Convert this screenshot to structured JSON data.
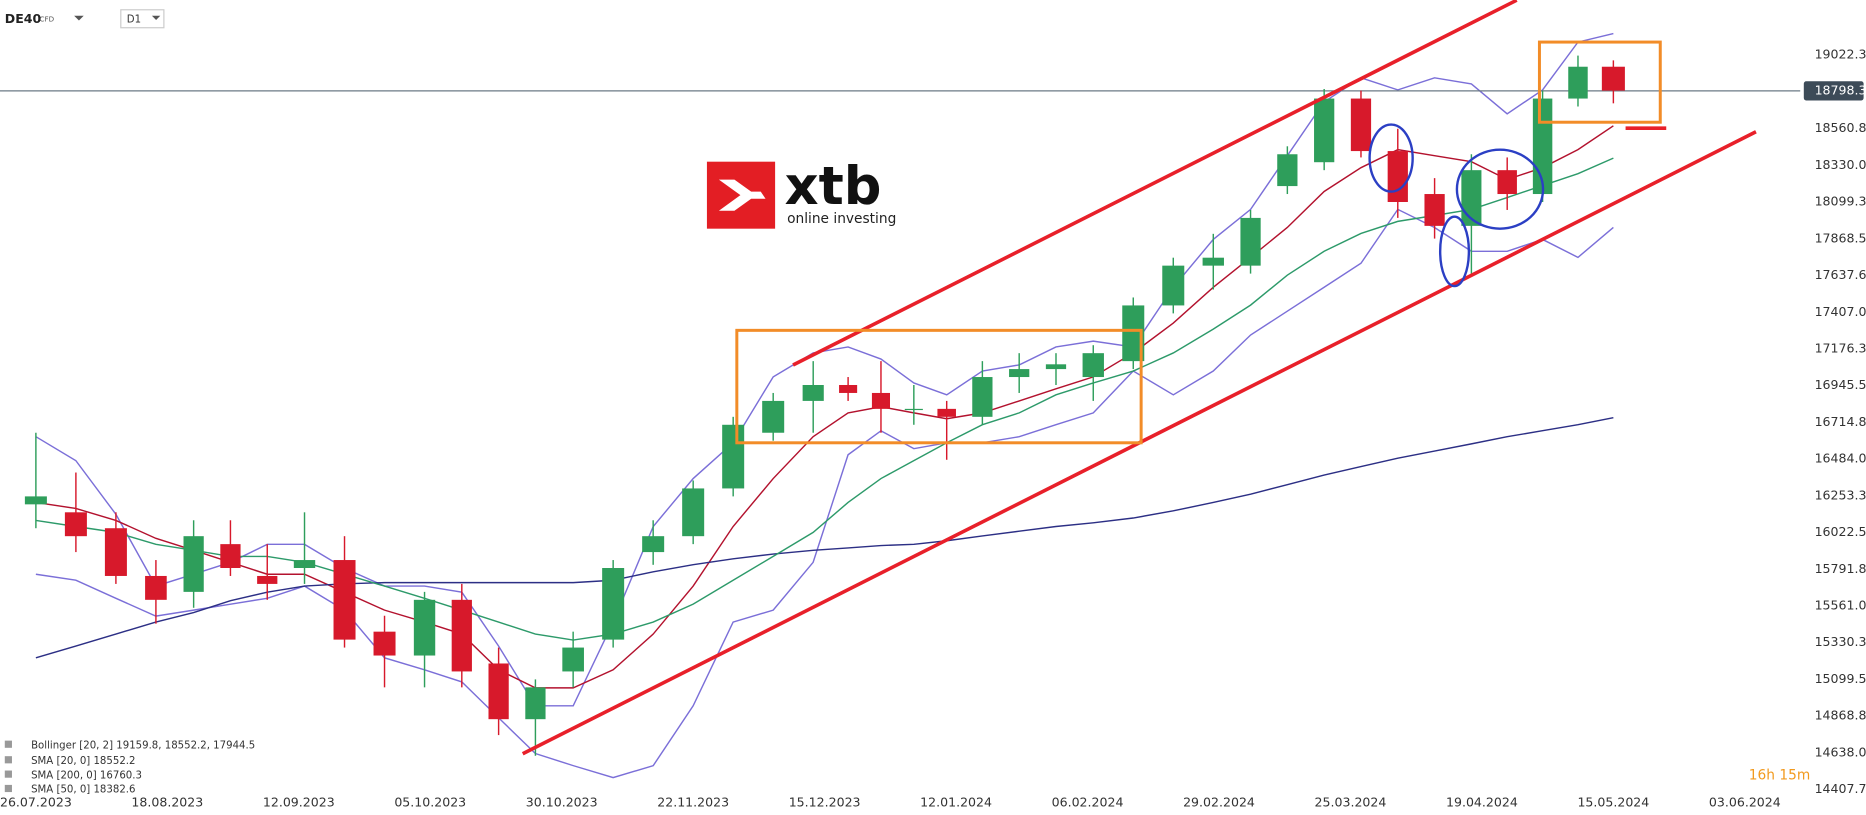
{
  "header": {
    "symbol": "DE40",
    "instrument_type": "CFD",
    "timeframe": "D1"
  },
  "logo": {
    "brand": "xtb",
    "tagline": "online investing"
  },
  "timer": "16h 15m",
  "chart_data": {
    "type": "candlestick",
    "up_color": "#2e9e5b",
    "down_color": "#d7192b",
    "x": [
      "24.07.2023",
      "31.07.2023",
      "07.08.2023",
      "14.08.2023",
      "21.08.2023",
      "28.08.2023",
      "04.09.2023",
      "11.09.2023",
      "18.09.2023",
      "25.09.2023",
      "02.10.2023",
      "09.10.2023",
      "16.10.2023",
      "23.10.2023",
      "30.10.2023",
      "06.11.2023",
      "13.11.2023",
      "20.11.2023",
      "27.11.2023",
      "04.12.2023",
      "11.12.2023",
      "18.12.2023",
      "25.12.2023",
      "01.01.2024",
      "08.01.2024",
      "15.01.2024",
      "22.01.2024",
      "29.01.2024",
      "05.02.2024",
      "12.02.2024",
      "19.02.2024",
      "26.02.2024",
      "04.03.2024",
      "11.03.2024",
      "18.03.2024",
      "25.03.2024",
      "01.04.2024",
      "08.04.2024",
      "15.04.2024",
      "22.04.2024",
      "29.04.2024",
      "06.05.2024",
      "13.05.2024"
    ],
    "open": [
      16200,
      16150,
      16050,
      15750,
      15650,
      15950,
      15750,
      15800,
      15850,
      15400,
      15250,
      15600,
      15200,
      14850,
      15150,
      15350,
      15900,
      16000,
      16300,
      16650,
      16850,
      16950,
      16900,
      16800,
      16800,
      16750,
      17000,
      17050,
      17000,
      17100,
      17450,
      17700,
      17700,
      18200,
      18350,
      18750,
      18420,
      18150,
      17950,
      18300,
      18150,
      18750,
      18950
    ],
    "high": [
      16650,
      16400,
      16150,
      15850,
      16100,
      16100,
      15950,
      16150,
      16000,
      15500,
      15650,
      15700,
      15300,
      15100,
      15400,
      15850,
      16100,
      16350,
      16750,
      16900,
      17100,
      17000,
      17100,
      16950,
      16850,
      17100,
      17150,
      17150,
      17200,
      17500,
      17750,
      17900,
      18050,
      18450,
      18810,
      18800,
      18560,
      18250,
      18400,
      18380,
      18800,
      19020,
      18990
    ],
    "low": [
      16050,
      15900,
      15700,
      15450,
      15550,
      15750,
      15600,
      15700,
      15300,
      15050,
      15050,
      15050,
      14750,
      14620,
      15050,
      15300,
      15820,
      15950,
      16250,
      16600,
      16650,
      16850,
      16650,
      16700,
      16480,
      16700,
      16900,
      16950,
      16850,
      17050,
      17400,
      17550,
      17650,
      18150,
      18300,
      18380,
      18000,
      17870,
      17650,
      18050,
      18100,
      18700,
      18720
    ],
    "close": [
      16250,
      16000,
      15750,
      15600,
      16000,
      15800,
      15700,
      15850,
      15350,
      15250,
      15600,
      15150,
      14850,
      15050,
      15300,
      15800,
      16000,
      16300,
      16700,
      16850,
      16950,
      16900,
      16800,
      16800,
      16750,
      17000,
      17050,
      17080,
      17150,
      17450,
      17700,
      17750,
      18000,
      18400,
      18750,
      18420,
      18100,
      17950,
      18300,
      18150,
      18750,
      18950,
      18800
    ],
    "series": [
      {
        "name": "Bollinger [20, 2]  19159.8,  18552.2,  17944.5",
        "color": "#7b6fd8",
        "upper": [
          16625,
          16475,
          16137,
          15686,
          15761,
          15836,
          15949,
          15949,
          15798,
          15686,
          15686,
          15648,
          15310,
          14934,
          14934,
          15460,
          16061,
          16362,
          16587,
          17001,
          17151,
          17189,
          17113,
          16963,
          16888,
          17038,
          17076,
          17189,
          17226,
          17189,
          17564,
          17865,
          18053,
          18391,
          18729,
          18880,
          18804,
          18880,
          18842,
          18654,
          18804,
          19105,
          19158
        ],
        "lower": [
          15761,
          15723,
          15610,
          15498,
          15535,
          15573,
          15610,
          15686,
          15535,
          15235,
          15160,
          15084,
          14859,
          14634,
          14558,
          14483,
          14558,
          14934,
          15460,
          15535,
          15836,
          16512,
          16662,
          16550,
          16587,
          16587,
          16625,
          16700,
          16775,
          17038,
          16888,
          17038,
          17264,
          17414,
          17564,
          17715,
          18053,
          17940,
          17790,
          17790,
          17865,
          17752,
          17940
        ]
      },
      {
        "name": "SMA [20, 0]  18552.2",
        "color": "#b3122e",
        "values": [
          16212,
          16174,
          16099,
          15986,
          15911,
          15836,
          15761,
          15761,
          15648,
          15535,
          15460,
          15385,
          15160,
          15047,
          15047,
          15160,
          15385,
          15686,
          16061,
          16362,
          16625,
          16775,
          16813,
          16775,
          16738,
          16775,
          16850,
          16926,
          17001,
          17151,
          17339,
          17564,
          17752,
          17940,
          18166,
          18316,
          18429,
          18391,
          18353,
          18241,
          18316,
          18429,
          18579
        ]
      },
      {
        "name": "SMA [200, 0]  16760.3",
        "color": "#2c2f85",
        "values": [
          15235,
          15310,
          15385,
          15460,
          15520,
          15595,
          15648,
          15686,
          15701,
          15708,
          15708,
          15708,
          15708,
          15708,
          15708,
          15723,
          15776,
          15821,
          15858,
          15888,
          15911,
          15926,
          15941,
          15949,
          15971,
          16001,
          16031,
          16061,
          16084,
          16114,
          16159,
          16212,
          16264,
          16324,
          16384,
          16437,
          16490,
          16535,
          16580,
          16625,
          16663,
          16700,
          16745
        ]
      },
      {
        "name": "SMA [50, 0]  18382.6",
        "color": "#2d9a6a",
        "values": [
          16099,
          16061,
          16024,
          15949,
          15911,
          15873,
          15873,
          15836,
          15761,
          15686,
          15610,
          15535,
          15460,
          15385,
          15347,
          15385,
          15460,
          15573,
          15723,
          15873,
          16024,
          16212,
          16362,
          16475,
          16587,
          16700,
          16775,
          16888,
          16963,
          17038,
          17151,
          17301,
          17452,
          17640,
          17790,
          17902,
          17978,
          18015,
          18053,
          18128,
          18203,
          18278,
          18376
        ]
      }
    ],
    "last_price": 18798.3,
    "last_price_color": "#3d4b58",
    "ylim": [
      14392,
      19368
    ],
    "yticks": [
      19022.3,
      18560.8,
      {
        "value": 18330,
        "label": "18330.0"
      },
      18099.3,
      17868.5,
      17637.6,
      {
        "value": 17407,
        "label": "17407.0"
      },
      17176.3,
      16945.5,
      16714.8,
      {
        "value": 16484,
        "label": "16484.0"
      },
      16253.3,
      16022.5,
      15791.8,
      {
        "value": 15561,
        "label": "15561.0"
      },
      15330.3,
      15099.5,
      14868.8,
      {
        "value": 14638,
        "label": "14638.0"
      },
      14407.7
    ],
    "xticks": [
      "26.07.2023",
      "18.08.2023",
      "12.09.2023",
      "05.10.2023",
      "30.10.2023",
      "22.11.2023",
      "15.12.2023",
      "12.01.2024",
      "06.02.2024",
      "29.02.2024",
      "25.03.2024",
      "19.04.2024",
      "15.05.2024",
      "03.06.2024"
    ]
  }
}
